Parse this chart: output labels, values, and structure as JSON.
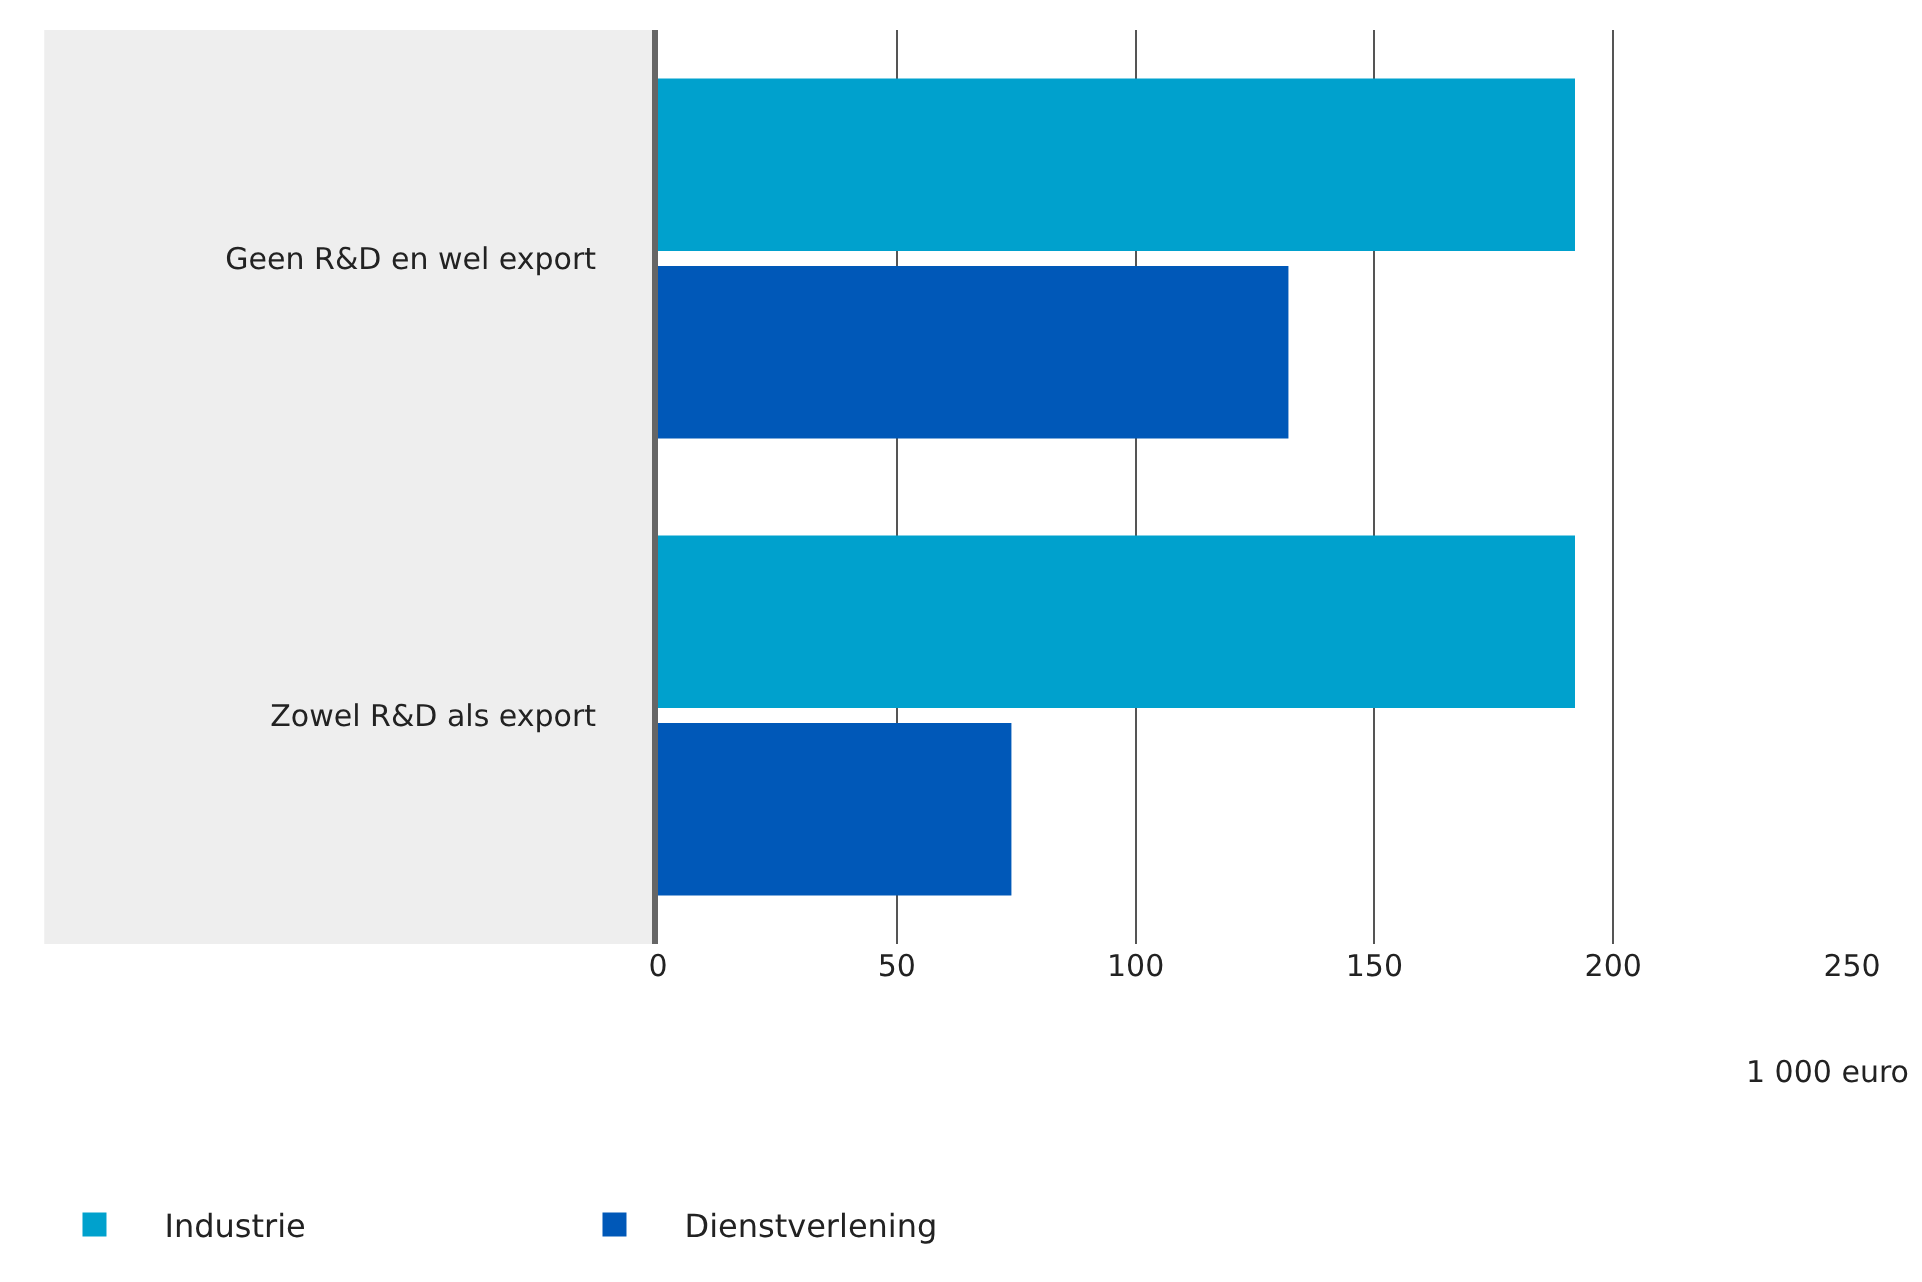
{
  "chart_data": {
    "type": "bar",
    "orientation": "horizontal",
    "categories": [
      "Geen R&D en wel export",
      "Zowel R&D als export"
    ],
    "series": [
      {
        "name": "Industrie",
        "color": "#00a1cd",
        "values": [
          192,
          192
        ]
      },
      {
        "name": "Dienstverlening",
        "color": "#0058b8",
        "values": [
          132,
          74
        ]
      }
    ],
    "xlim": [
      0,
      250
    ],
    "xticks": [
      0,
      50,
      100,
      150,
      200,
      250
    ],
    "xlabel": "1 000 euro",
    "grid": "x",
    "legend": "bottom left"
  }
}
